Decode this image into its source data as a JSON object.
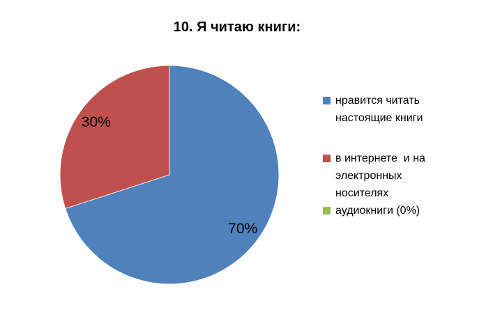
{
  "title": "10. Я читаю книги:",
  "legend": {
    "items": [
      {
        "lines": [
          "нравится читать",
          "настоящие книги"
        ],
        "color": "#4f81bd"
      },
      {
        "lines": [
          "в интернете  и на",
          "электронных",
          "носителях"
        ],
        "color": "#c0504d"
      },
      {
        "lines": [
          "аудиокниги (0%)"
        ],
        "color": "#9bbb59"
      }
    ]
  },
  "chart_data": {
    "type": "pie",
    "title": "10. Я читаю книги:",
    "categories": [
      "нравится читать настоящие книги",
      "в интернете  и на электронных носителях",
      "аудиокниги"
    ],
    "values": [
      70,
      30,
      0
    ],
    "unit": "%",
    "colors": [
      "#4f81bd",
      "#c0504d",
      "#9bbb59"
    ],
    "data_labels": [
      "70%",
      "30%",
      ""
    ],
    "start_angle_deg": 0,
    "direction": "clockwise",
    "legend_position": "right",
    "background": "#ffffff",
    "slice_border_color": "#ededf3"
  }
}
